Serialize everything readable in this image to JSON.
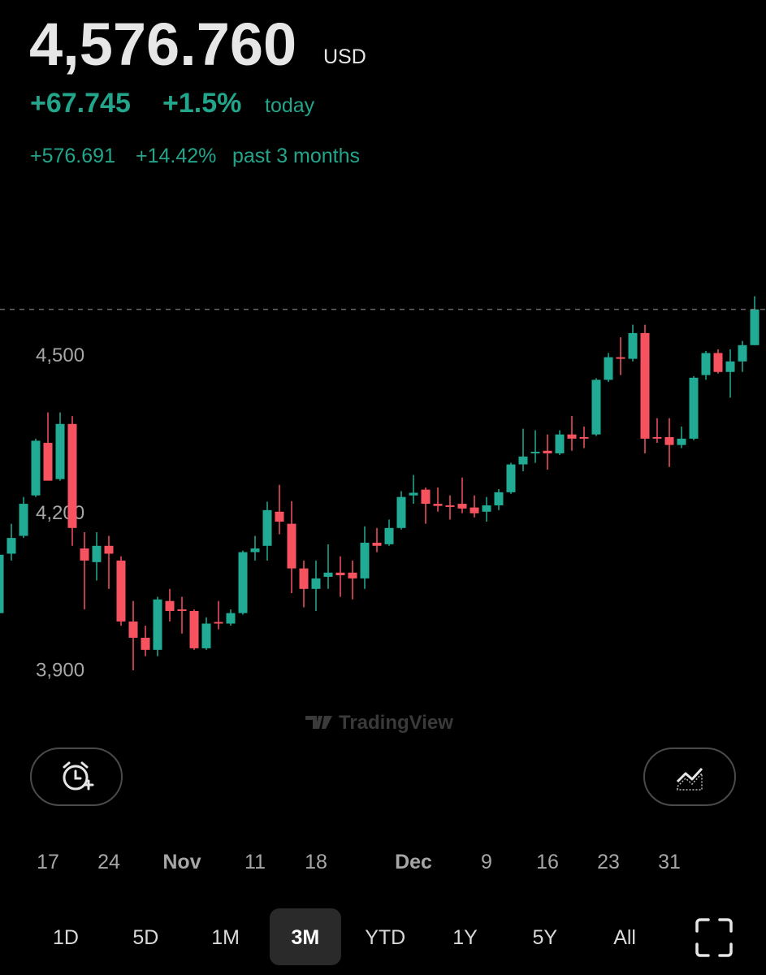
{
  "header": {
    "price": "4,576.760",
    "currency": "USD",
    "change_today": "+67.745",
    "change_today_pct": "+1.5%",
    "today_label": "today",
    "change_period": "+576.691",
    "change_period_pct": "+14.42%",
    "period_label": "past 3 months"
  },
  "chart_data": {
    "type": "candlestick",
    "categories": [
      null,
      null,
      null,
      null,
      "17",
      null,
      null,
      null,
      null,
      "24",
      null,
      null,
      null,
      null,
      null,
      "Nov",
      null,
      null,
      null,
      null,
      null,
      "11",
      null,
      null,
      null,
      null,
      "18",
      null,
      null,
      null,
      null,
      null,
      null,
      null,
      "Dec",
      null,
      null,
      null,
      null,
      null,
      "9",
      null,
      null,
      null,
      null,
      "16",
      null,
      null,
      null,
      null,
      "23",
      null,
      null,
      null,
      null,
      "31",
      null,
      null,
      null,
      null,
      null,
      null,
      null
    ],
    "open": [
      4007,
      4120,
      4154,
      4231,
      4331,
      4262,
      4367,
      4130,
      4104,
      4135,
      4107,
      3991,
      3960,
      3937,
      4030,
      4014,
      4011,
      3940,
      3990,
      3987,
      4007,
      4123,
      4135,
      4200,
      4177,
      4092,
      4053,
      4076,
      4084,
      4084,
      4073,
      4141,
      4138,
      4169,
      4231,
      4242,
      4215,
      4212,
      4215,
      4208,
      4200,
      4212,
      4237,
      4290,
      4311,
      4316,
      4311,
      4347,
      4342,
      4347,
      4451,
      4494,
      4491,
      4540,
      4342,
      4342,
      4327,
      4339,
      4460,
      4502,
      4466,
      4486,
      4517
    ],
    "high": [
      4123,
      4177,
      4228,
      4339,
      4389,
      4389,
      4382,
      4161,
      4161,
      4154,
      4115,
      4030,
      3983,
      4038,
      4053,
      4038,
      4014,
      3999,
      4030,
      4014,
      4126,
      4154,
      4219,
      4251,
      4220,
      4107,
      4107,
      4138,
      4115,
      4107,
      4172,
      4169,
      4185,
      4239,
      4270,
      4246,
      4246,
      4231,
      4265,
      4231,
      4228,
      4243,
      4293,
      4358,
      4355,
      4347,
      4355,
      4382,
      4362,
      4454,
      4502,
      4532,
      4556,
      4556,
      4378,
      4378,
      4362,
      4458,
      4506,
      4509,
      4509,
      4525,
      4610
    ],
    "low": [
      4007,
      4107,
      4150,
      4228,
      4259,
      4259,
      4135,
      4014,
      4069,
      4053,
      3983,
      3898,
      3925,
      3925,
      3991,
      3968,
      3937,
      3937,
      3976,
      3983,
      4004,
      4107,
      4107,
      4157,
      4045,
      4018,
      4011,
      4053,
      4038,
      4033,
      4053,
      4123,
      4135,
      4166,
      4215,
      4177,
      4200,
      4185,
      4197,
      4189,
      4181,
      4203,
      4234,
      4277,
      4293,
      4280,
      4308,
      4316,
      4321,
      4344,
      4447,
      4460,
      4486,
      4311,
      4331,
      4285,
      4321,
      4336,
      4451,
      4463,
      4417,
      4466,
      4517
    ],
    "close": [
      4118,
      4150,
      4215,
      4335,
      4259,
      4367,
      4169,
      4107,
      4135,
      4120,
      3991,
      3960,
      3937,
      4033,
      4011,
      4011,
      3940,
      3987,
      3987,
      4007,
      4123,
      4130,
      4203,
      4181,
      4092,
      4053,
      4073,
      4084,
      4079,
      4073,
      4141,
      4135,
      4169,
      4228,
      4236,
      4215,
      4211,
      4209,
      4206,
      4197,
      4212,
      4237,
      4290,
      4305,
      4314,
      4311,
      4347,
      4339,
      4339,
      4451,
      4494,
      4491,
      4540,
      4339,
      4339,
      4327,
      4339,
      4455,
      4502,
      4466,
      4486,
      4517,
      4585
    ],
    "up_color": "#22ab94",
    "down_color": "#f7525f",
    "ylim": [
      3813,
      4710
    ],
    "yticks": [
      {
        "value": 3900,
        "label": "3,900"
      },
      {
        "value": 4200,
        "label": "4,200"
      },
      {
        "value": 4500,
        "label": "4,500"
      }
    ],
    "watermark": "TradingView"
  },
  "range_buttons": {
    "items": [
      "1D",
      "5D",
      "1M",
      "3M",
      "YTD",
      "1Y",
      "5Y",
      "All"
    ],
    "selected": 3
  }
}
